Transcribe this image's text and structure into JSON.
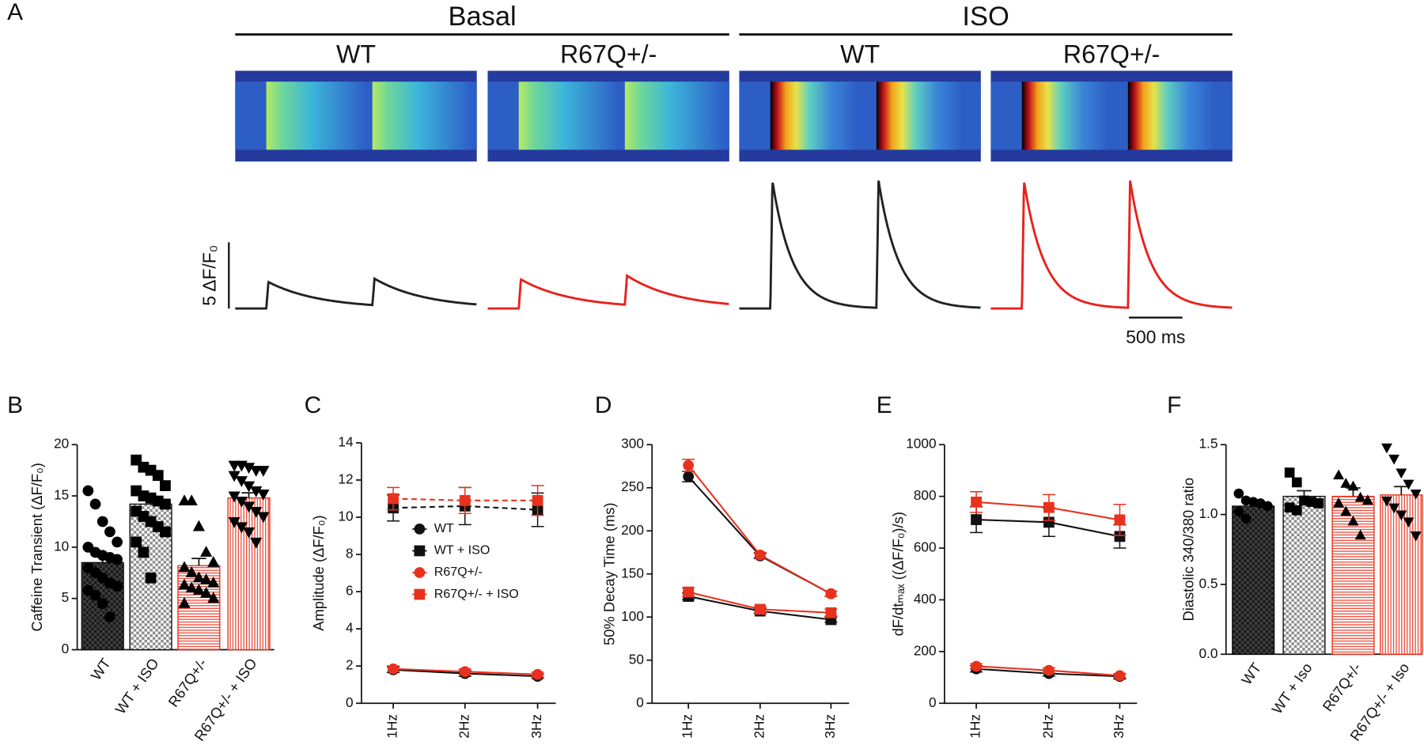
{
  "chart_data": [
    {
      "type": "traces",
      "panel": "A",
      "groups": [
        "Basal",
        "ISO"
      ],
      "columns": [
        "WT",
        "R67Q+/-",
        "WT",
        "R67Q+/-"
      ],
      "series": [
        {
          "color": "#222222",
          "peak": 2.0,
          "decay_ms": 480
        },
        {
          "color": "#e8211c",
          "peak": 2.2,
          "decay_ms": 480
        },
        {
          "color": "#222222",
          "peak": 9.6,
          "decay_ms": 190
        },
        {
          "color": "#e8211c",
          "peak": 9.6,
          "decay_ms": 190
        }
      ],
      "stim_ms": [
        290,
        1280
      ],
      "scale_y": {
        "value": 5,
        "label": "5 ΔF/F₀"
      },
      "scale_x": {
        "value": 500,
        "label": "500 ms"
      }
    },
    {
      "type": "bar_scatter",
      "panel": "B",
      "y_label": "Caffeine Transient (ΔF/F₀)",
      "categories": [
        "WT",
        "WT + ISO",
        "R67Q+/-",
        "R67Q+/- + ISO"
      ],
      "values": [
        8.5,
        14.2,
        8.2,
        14.8
      ],
      "errors": [
        0.7,
        0.7,
        0.7,
        0.5
      ],
      "points": [
        [
          15.5,
          14.2,
          12.5,
          11.5,
          10.5,
          10.0,
          9.5,
          9.2,
          9.0,
          8.8,
          8.0,
          7.5,
          7.0,
          6.5,
          6.2,
          5.8,
          5.3,
          4.5,
          3.2
        ],
        [
          18.5,
          17.8,
          17.5,
          17.0,
          16.0,
          15.5,
          15.0,
          14.8,
          14.5,
          14.2,
          13.5,
          13.0,
          12.5,
          12.0,
          11.5,
          10.5,
          9.5,
          7.0
        ],
        [
          14.5,
          14.5,
          12.0,
          9.5,
          8.5,
          8.0,
          7.5,
          7.0,
          6.8,
          6.5,
          6.3,
          6.0,
          5.8,
          5.5,
          5.0,
          4.5
        ],
        [
          18.0,
          18.0,
          17.8,
          17.5,
          17.5,
          17.0,
          16.5,
          16.0,
          15.5,
          15.2,
          15.0,
          14.5,
          14.0,
          13.5,
          13.0,
          12.5,
          12.0,
          11.5,
          10.5
        ]
      ],
      "colors": [
        "#1a1a1a",
        "#8c8c8c",
        "#e8321e",
        "#e8321e"
      ],
      "patterns": [
        "crosshatch",
        "checker",
        "hlines",
        "vlines"
      ],
      "markers": [
        "circle",
        "square",
        "triangle-up",
        "triangle-down"
      ],
      "ylim": [
        0,
        20
      ],
      "yticks": [
        0,
        5,
        10,
        15,
        20
      ]
    },
    {
      "type": "line",
      "panel": "C",
      "y_label": "Amplitude (ΔF/F₀)",
      "categories": [
        "1Hz",
        "2Hz",
        "3Hz"
      ],
      "ylim": [
        0,
        14
      ],
      "yticks": [
        0,
        2,
        4,
        6,
        8,
        10,
        12,
        14
      ],
      "legend": "center",
      "series": [
        {
          "name": "WT",
          "color": "#111111",
          "marker": "circle",
          "dash": false,
          "values": [
            1.8,
            1.6,
            1.45
          ],
          "errors": [
            0.15,
            0.15,
            0.12
          ]
        },
        {
          "name": "WT + ISO",
          "color": "#111111",
          "marker": "square",
          "dash": true,
          "values": [
            10.5,
            10.6,
            10.4
          ],
          "errors": [
            0.7,
            1.0,
            0.9
          ]
        },
        {
          "name": "R67Q+/-",
          "color": "#e8321e",
          "marker": "circle",
          "dash": false,
          "values": [
            1.85,
            1.7,
            1.55
          ],
          "errors": [
            0.15,
            0.15,
            0.12
          ]
        },
        {
          "name": "R67Q+/- + ISO",
          "color": "#e8321e",
          "marker": "square",
          "dash": true,
          "values": [
            11.0,
            10.9,
            10.9
          ],
          "errors": [
            0.6,
            0.7,
            0.8
          ]
        }
      ]
    },
    {
      "type": "line",
      "panel": "D",
      "y_label": "50% Decay Time (ms)",
      "categories": [
        "1Hz",
        "2Hz",
        "3Hz"
      ],
      "ylim": [
        0,
        300
      ],
      "yticks": [
        0,
        50,
        100,
        150,
        200,
        250,
        300
      ],
      "series": [
        {
          "color": "#111111",
          "marker": "circle",
          "values": [
            263,
            171,
            127
          ],
          "errors": [
            6,
            3,
            3
          ]
        },
        {
          "color": "#111111",
          "marker": "square",
          "values": [
            124,
            107,
            97
          ],
          "errors": [
            4,
            3,
            3
          ]
        },
        {
          "color": "#e8321e",
          "marker": "circle",
          "values": [
            276,
            172,
            127
          ],
          "errors": [
            7,
            3,
            3
          ]
        },
        {
          "color": "#e8321e",
          "marker": "square",
          "values": [
            129,
            109,
            105
          ],
          "errors": [
            5,
            3,
            4
          ]
        }
      ]
    },
    {
      "type": "line",
      "panel": "E",
      "y_label": "dF/dtₘₐₓ ((ΔF/F₀)/s)",
      "categories": [
        "1Hz",
        "2Hz",
        "3Hz"
      ],
      "ylim": [
        0,
        1000
      ],
      "yticks": [
        0,
        200,
        400,
        600,
        800,
        1000
      ],
      "series": [
        {
          "color": "#111111",
          "marker": "circle",
          "values": [
            133,
            115,
            104
          ],
          "errors": [
            12,
            10,
            10
          ]
        },
        {
          "color": "#111111",
          "marker": "square",
          "values": [
            710,
            700,
            645
          ],
          "errors": [
            50,
            55,
            45
          ]
        },
        {
          "color": "#e8321e",
          "marker": "circle",
          "values": [
            143,
            127,
            107
          ],
          "errors": [
            10,
            10,
            8
          ]
        },
        {
          "color": "#e8321e",
          "marker": "square",
          "values": [
            778,
            757,
            709
          ],
          "errors": [
            40,
            50,
            60
          ]
        }
      ]
    },
    {
      "type": "bar_scatter",
      "panel": "F",
      "y_label": "Diastolic 340/380 ratio",
      "categories": [
        "WT",
        "WT + Iso",
        "R67Q+/-",
        "R67Q+/- + Iso"
      ],
      "values": [
        1.06,
        1.13,
        1.13,
        1.14
      ],
      "errors": [
        0.02,
        0.04,
        0.06,
        0.06
      ],
      "points": [
        [
          1.15,
          1.1,
          1.09,
          1.08,
          1.06,
          1.02,
          0.97
        ],
        [
          1.3,
          1.23,
          1.1,
          1.09,
          1.08,
          1.05,
          1.03
        ],
        [
          1.28,
          1.22,
          1.2,
          1.12,
          1.1,
          1.08,
          1.02,
          0.95,
          0.85
        ],
        [
          1.48,
          1.4,
          1.3,
          1.22,
          1.15,
          1.1,
          1.05,
          1.0,
          0.95,
          0.85
        ]
      ],
      "colors": [
        "#1a1a1a",
        "#8c8c8c",
        "#e8321e",
        "#e8321e"
      ],
      "patterns": [
        "crosshatch",
        "checker",
        "hlines",
        "vlines"
      ],
      "markers": [
        "circle",
        "square",
        "triangle-up",
        "triangle-down"
      ],
      "ylim": [
        0,
        1.5
      ],
      "yticks": [
        {
          "value": 0,
          "label": "0.0"
        },
        0.5,
        {
          "value": 1,
          "label": "1.0"
        },
        1.5
      ]
    }
  ]
}
